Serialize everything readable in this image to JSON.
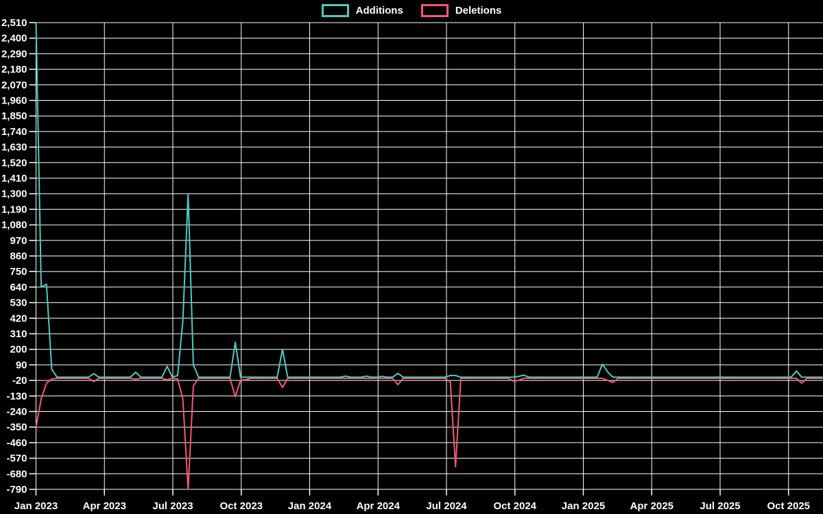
{
  "legend": {
    "additions_label": "Additions",
    "deletions_label": "Deletions"
  },
  "colors": {
    "additions": "#4dccc4",
    "deletions": "#f45977",
    "background": "#000000",
    "grid": "#ffffff",
    "text": "#ffffff"
  },
  "chart_data": {
    "type": "line",
    "title": "",
    "xlabel": "",
    "ylabel": "",
    "grid": true,
    "legend_position": "top-center",
    "x_interval": "weekly",
    "x_start": "Jan 2023",
    "x_end": "Nov 2025",
    "x_tick_labels": [
      "Jan 2023",
      "Apr 2023",
      "Jul 2023",
      "Oct 2023",
      "Jan 2024",
      "Apr 2024",
      "Jul 2024",
      "Oct 2024",
      "Jan 2025",
      "Apr 2025",
      "Jul 2025",
      "Oct 2025"
    ],
    "y_tick_labels": [
      "2,510",
      "2,400",
      "2,290",
      "2,180",
      "2,070",
      "1,960",
      "1,850",
      "1,740",
      "1,630",
      "1,520",
      "1,410",
      "1,300",
      "1,190",
      "1,080",
      "970",
      "860",
      "750",
      "640",
      "530",
      "420",
      "310",
      "200",
      "90",
      "-20",
      "-130",
      "-240",
      "-350",
      "-460",
      "-570",
      "-680",
      "-790"
    ],
    "ylim": [
      -790,
      2510
    ],
    "y_tick_step": 110,
    "series": [
      {
        "name": "Additions",
        "color": "#4dccc4",
        "values": [
          2510,
          640,
          660,
          60,
          3,
          3,
          3,
          3,
          3,
          3,
          3,
          28,
          3,
          3,
          3,
          3,
          3,
          3,
          3,
          38,
          3,
          3,
          3,
          3,
          3,
          80,
          3,
          15,
          400,
          1300,
          90,
          3,
          3,
          3,
          3,
          3,
          3,
          3,
          250,
          3,
          3,
          3,
          3,
          3,
          3,
          3,
          3,
          200,
          3,
          3,
          3,
          3,
          3,
          3,
          3,
          3,
          3,
          3,
          3,
          10,
          3,
          3,
          3,
          10,
          3,
          3,
          8,
          3,
          3,
          30,
          3,
          3,
          3,
          3,
          3,
          3,
          3,
          3,
          3,
          15,
          15,
          3,
          3,
          3,
          3,
          3,
          3,
          3,
          3,
          3,
          3,
          3,
          8,
          18,
          3,
          3,
          3,
          3,
          3,
          3,
          3,
          3,
          3,
          3,
          3,
          3,
          3,
          3,
          95,
          40,
          3,
          3,
          3,
          3,
          3,
          3,
          3,
          3,
          3,
          3,
          3,
          3,
          3,
          3,
          3,
          3,
          3,
          3,
          3,
          3,
          3,
          3,
          3,
          3,
          3,
          3,
          3,
          3,
          3,
          3,
          3,
          3,
          3,
          3,
          3,
          47,
          3,
          3,
          3,
          3,
          3
        ]
      },
      {
        "name": "Deletions",
        "color": "#f45977",
        "values": [
          -350,
          -150,
          -40,
          -10,
          -5,
          -5,
          -5,
          -5,
          -5,
          -5,
          -5,
          -28,
          -5,
          -5,
          -5,
          -5,
          -5,
          -5,
          -5,
          -12,
          -5,
          -5,
          -5,
          -5,
          -5,
          -15,
          -5,
          -10,
          -150,
          -790,
          -60,
          -5,
          -5,
          -5,
          -5,
          -5,
          -5,
          -5,
          -135,
          -18,
          -15,
          -5,
          -5,
          -5,
          -5,
          -5,
          -5,
          -70,
          -5,
          -5,
          -5,
          -5,
          -5,
          -5,
          -5,
          -5,
          -5,
          -5,
          -5,
          -5,
          -5,
          -5,
          -5,
          -5,
          -5,
          -5,
          -5,
          -5,
          -5,
          -50,
          -5,
          -5,
          -5,
          -5,
          -5,
          -5,
          -5,
          -5,
          -5,
          -30,
          -630,
          -5,
          -5,
          -5,
          -5,
          -5,
          -5,
          -5,
          -5,
          -5,
          -5,
          -25,
          -20,
          -5,
          -5,
          -5,
          -5,
          -5,
          -5,
          -5,
          -5,
          -5,
          -5,
          -5,
          -5,
          -5,
          -5,
          -5,
          -5,
          -20,
          -35,
          -5,
          -5,
          -5,
          -5,
          -5,
          -5,
          -5,
          -5,
          -5,
          -5,
          -5,
          -5,
          -5,
          -5,
          -5,
          -5,
          -5,
          -5,
          -5,
          -5,
          -5,
          -5,
          -5,
          -5,
          -5,
          -5,
          -5,
          -5,
          -5,
          -5,
          -5,
          -5,
          -5,
          -5,
          -5,
          -40,
          -5,
          -5,
          -5,
          -5,
          -5
        ]
      }
    ]
  }
}
